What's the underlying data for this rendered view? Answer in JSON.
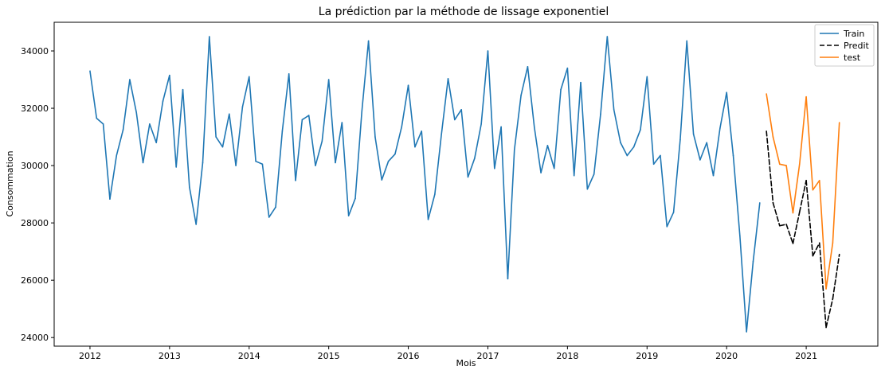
{
  "chart_data": {
    "type": "line",
    "title": "La prédiction par la méthode de lissage exponentiel",
    "xlabel": "Mois",
    "ylabel": "Consommation",
    "xlim": [
      2011.55,
      2021.9
    ],
    "ylim": [
      23700,
      35000
    ],
    "x_ticks": [
      2012,
      2013,
      2014,
      2015,
      2016,
      2017,
      2018,
      2019,
      2020,
      2021
    ],
    "y_ticks": [
      24000,
      26000,
      28000,
      30000,
      32000,
      34000
    ],
    "legend_position": "top-right",
    "grid": false,
    "series": [
      {
        "name": "Train",
        "color": "#1f77b4",
        "style": "solid",
        "x_start": "2012-01",
        "values": [
          33300,
          31650,
          31450,
          28830,
          30350,
          31250,
          33000,
          31850,
          30100,
          31450,
          30800,
          32250,
          33150,
          29950,
          32650,
          29250,
          27950,
          30100,
          34500,
          31000,
          30650,
          31800,
          30000,
          32050,
          33100,
          30150,
          30050,
          28200,
          28550,
          31200,
          33200,
          29480,
          31600,
          31750,
          30000,
          30850,
          33000,
          30100,
          31500,
          28250,
          28850,
          31900,
          34350,
          31000,
          29500,
          30150,
          30400,
          31350,
          32800,
          30650,
          31200,
          28120,
          29000,
          31100,
          33030,
          31600,
          31950,
          29600,
          30250,
          31450,
          34000,
          29900,
          31350,
          26050,
          30550,
          32450,
          33450,
          31350,
          29750,
          30700,
          29900,
          32650,
          33400,
          29650,
          32900,
          29180,
          29700,
          31800,
          34500,
          31950,
          30800,
          30350,
          30650,
          31250,
          33100,
          30050,
          30350,
          27870,
          28370,
          30900,
          34350,
          31100,
          30200,
          30800,
          29650,
          31300,
          32550,
          30350,
          27550,
          24200,
          26650,
          28700
        ]
      },
      {
        "name": "Predit",
        "color": "#000000",
        "style": "dashed",
        "x_start": "2020-07",
        "values": [
          31200,
          28700,
          27900,
          27950,
          27280,
          28380,
          29480,
          26850,
          27300,
          24350,
          25350,
          26900
        ]
      },
      {
        "name": "test",
        "color": "#ff7f0e",
        "style": "solid",
        "x_start": "2020-07",
        "values": [
          32500,
          31000,
          30050,
          30000,
          28350,
          30050,
          32400,
          29150,
          29480,
          25700,
          27300,
          31500
        ]
      }
    ]
  }
}
